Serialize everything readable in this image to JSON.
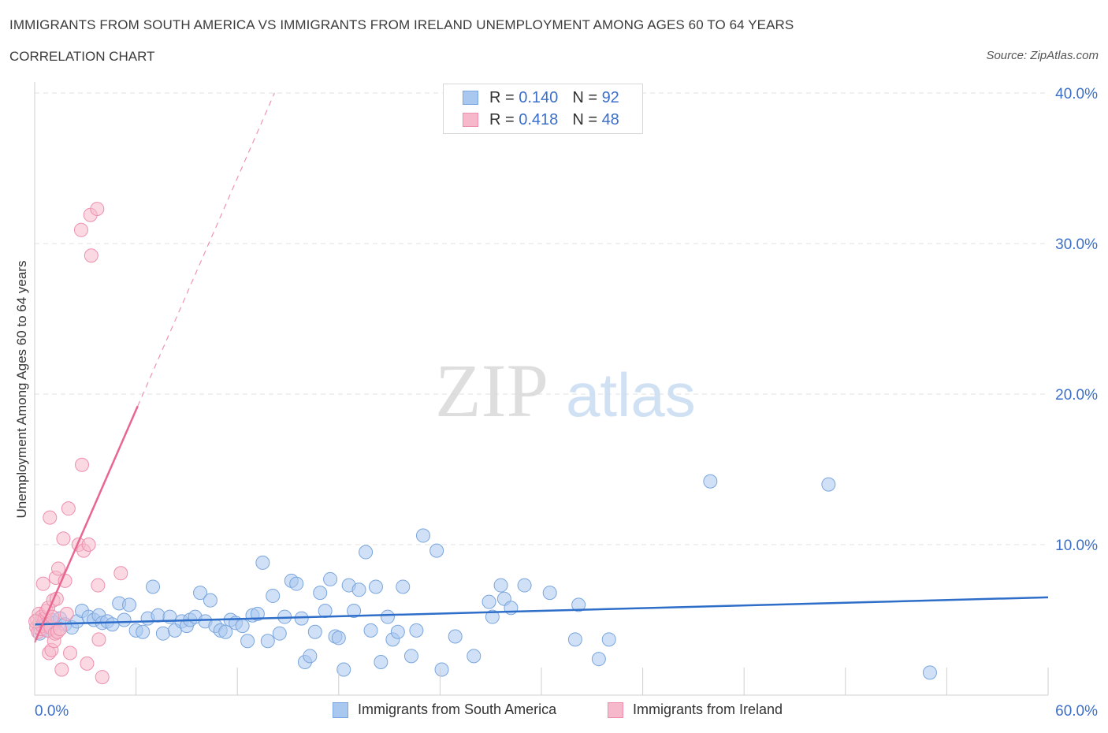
{
  "header": {
    "title": "IMMIGRANTS FROM SOUTH AMERICA VS IMMIGRANTS FROM IRELAND UNEMPLOYMENT AMONG AGES 60 TO 64 YEARS",
    "subtitle": "CORRELATION CHART",
    "source": "Source: ZipAtlas.com"
  },
  "legend_top": {
    "rows": [
      {
        "r_label": "R =",
        "r_value": "0.140",
        "n_label": "N =",
        "n_value": "92"
      },
      {
        "r_label": "R =",
        "r_value": "0.418",
        "n_label": "N =",
        "n_value": "48"
      }
    ]
  },
  "bottom_legend": {
    "series1": "Immigrants from South America",
    "series2": "Immigrants from Ireland"
  },
  "watermark": {
    "part1": "ZIP",
    "part2": "atlas"
  },
  "colors": {
    "blue_fill": "#a9c8f0",
    "blue_stroke": "#7aa6dd",
    "blue_line": "#2e6ec9",
    "pink_fill": "#f6b9cc",
    "pink_stroke": "#ee8fae",
    "pink_line": "#e8668f",
    "axis_label": "#3b6fc9",
    "grid": "#e2e2e2"
  },
  "chart_data": {
    "type": "scatter",
    "title": "Immigrants from South America vs Immigrants from Ireland Unemployment Among Ages 60 to 64 Years",
    "xlabel": "",
    "ylabel": "Unemployment Among Ages 60 to 64 years",
    "xlim": [
      0,
      60
    ],
    "ylim": [
      0,
      40
    ],
    "x_tick_labels": [
      "0.0%",
      "60.0%"
    ],
    "y_ticks": [
      10,
      20,
      30,
      40
    ],
    "y_tick_labels": [
      "10.0%",
      "20.0%",
      "30.0%",
      "40.0%"
    ],
    "grid": true,
    "series": [
      {
        "name": "Immigrants from South America",
        "R": 0.14,
        "N": 92,
        "trend": {
          "x0": 0,
          "y0": 4.7,
          "x1": 60,
          "y1": 6.5
        },
        "points": [
          [
            0.3,
            4.1
          ],
          [
            0.5,
            4.6
          ],
          [
            0.8,
            4.3
          ],
          [
            1.0,
            5.0
          ],
          [
            1.2,
            4.8
          ],
          [
            1.5,
            5.1
          ],
          [
            1.8,
            4.7
          ],
          [
            2.2,
            4.5
          ],
          [
            2.5,
            4.9
          ],
          [
            2.8,
            5.6
          ],
          [
            3.2,
            5.2
          ],
          [
            3.5,
            5.0
          ],
          [
            3.8,
            5.3
          ],
          [
            4.0,
            4.8
          ],
          [
            4.3,
            4.9
          ],
          [
            4.6,
            4.7
          ],
          [
            5.0,
            6.1
          ],
          [
            5.3,
            5.0
          ],
          [
            5.6,
            6.0
          ],
          [
            6.0,
            4.3
          ],
          [
            6.4,
            4.2
          ],
          [
            6.7,
            5.1
          ],
          [
            7.0,
            7.2
          ],
          [
            7.3,
            5.3
          ],
          [
            7.6,
            4.1
          ],
          [
            8.0,
            5.2
          ],
          [
            8.3,
            4.3
          ],
          [
            8.7,
            4.9
          ],
          [
            9.0,
            4.6
          ],
          [
            9.2,
            5.0
          ],
          [
            9.5,
            5.2
          ],
          [
            9.8,
            6.8
          ],
          [
            10.1,
            4.9
          ],
          [
            10.4,
            6.3
          ],
          [
            10.7,
            4.6
          ],
          [
            11.0,
            4.3
          ],
          [
            11.3,
            4.2
          ],
          [
            11.6,
            5.0
          ],
          [
            11.9,
            4.8
          ],
          [
            12.3,
            4.6
          ],
          [
            12.6,
            3.6
          ],
          [
            12.9,
            5.3
          ],
          [
            13.2,
            5.4
          ],
          [
            13.5,
            8.8
          ],
          [
            13.8,
            3.6
          ],
          [
            14.1,
            6.6
          ],
          [
            14.5,
            4.1
          ],
          [
            14.8,
            5.2
          ],
          [
            15.2,
            7.6
          ],
          [
            15.5,
            7.4
          ],
          [
            15.8,
            5.1
          ],
          [
            16.0,
            2.2
          ],
          [
            16.3,
            2.6
          ],
          [
            16.6,
            4.2
          ],
          [
            16.9,
            6.8
          ],
          [
            17.2,
            5.6
          ],
          [
            17.5,
            7.7
          ],
          [
            17.8,
            3.9
          ],
          [
            18.0,
            3.8
          ],
          [
            18.3,
            1.7
          ],
          [
            18.6,
            7.3
          ],
          [
            18.9,
            5.6
          ],
          [
            19.2,
            7.0
          ],
          [
            19.6,
            9.5
          ],
          [
            19.9,
            4.3
          ],
          [
            20.2,
            7.2
          ],
          [
            20.5,
            2.2
          ],
          [
            20.9,
            5.2
          ],
          [
            21.2,
            3.7
          ],
          [
            21.5,
            4.2
          ],
          [
            21.8,
            7.2
          ],
          [
            22.3,
            2.6
          ],
          [
            22.6,
            4.3
          ],
          [
            23.0,
            10.6
          ],
          [
            23.8,
            9.6
          ],
          [
            24.1,
            1.7
          ],
          [
            24.9,
            3.9
          ],
          [
            26.0,
            2.6
          ],
          [
            26.9,
            6.2
          ],
          [
            27.1,
            5.2
          ],
          [
            27.6,
            7.3
          ],
          [
            27.8,
            6.4
          ],
          [
            28.2,
            5.8
          ],
          [
            29.0,
            7.3
          ],
          [
            30.5,
            6.8
          ],
          [
            32.0,
            3.7
          ],
          [
            32.2,
            6.0
          ],
          [
            33.4,
            2.4
          ],
          [
            34.0,
            3.7
          ],
          [
            40.0,
            14.2
          ],
          [
            47.0,
            14.0
          ],
          [
            53.0,
            1.5
          ]
        ]
      },
      {
        "name": "Immigrants from Ireland",
        "R": 0.418,
        "N": 48,
        "trend": {
          "x0": 0,
          "y0": 3.5,
          "x1": 6.1,
          "y1": 19.2
        },
        "trend_dashed": {
          "x0": 6.1,
          "y0": 19.2,
          "x1": 14.2,
          "y1": 40.0
        },
        "points": [
          [
            0.1,
            4.5
          ],
          [
            0.15,
            5.0
          ],
          [
            0.2,
            4.2
          ],
          [
            0.25,
            5.4
          ],
          [
            0.3,
            4.8
          ],
          [
            0.35,
            4.4
          ],
          [
            0.4,
            5.2
          ],
          [
            0.45,
            4.6
          ],
          [
            0.5,
            7.4
          ],
          [
            0.55,
            4.9
          ],
          [
            0.6,
            5.1
          ],
          [
            0.65,
            4.7
          ],
          [
            0.7,
            5.6
          ],
          [
            0.75,
            4.3
          ],
          [
            0.8,
            5.8
          ],
          [
            0.85,
            2.8
          ],
          [
            0.9,
            11.8
          ],
          [
            0.95,
            4.5
          ],
          [
            1.0,
            3.0
          ],
          [
            1.05,
            5.2
          ],
          [
            1.1,
            6.3
          ],
          [
            1.15,
            3.6
          ],
          [
            1.2,
            4.1
          ],
          [
            1.25,
            7.8
          ],
          [
            1.3,
            6.4
          ],
          [
            1.35,
            4.2
          ],
          [
            1.4,
            8.4
          ],
          [
            1.5,
            4.4
          ],
          [
            1.6,
            1.7
          ],
          [
            1.7,
            10.4
          ],
          [
            1.8,
            7.6
          ],
          [
            1.9,
            5.4
          ],
          [
            2.0,
            12.4
          ],
          [
            2.1,
            2.8
          ],
          [
            2.6,
            10.0
          ],
          [
            2.75,
            30.9
          ],
          [
            2.8,
            15.3
          ],
          [
            2.9,
            9.6
          ],
          [
            3.1,
            2.1
          ],
          [
            3.2,
            10.0
          ],
          [
            3.3,
            31.9
          ],
          [
            3.35,
            29.2
          ],
          [
            3.7,
            32.3
          ],
          [
            3.75,
            7.3
          ],
          [
            3.8,
            3.7
          ],
          [
            4.0,
            1.2
          ],
          [
            5.1,
            8.1
          ],
          [
            0.05,
            4.9
          ]
        ]
      }
    ]
  }
}
